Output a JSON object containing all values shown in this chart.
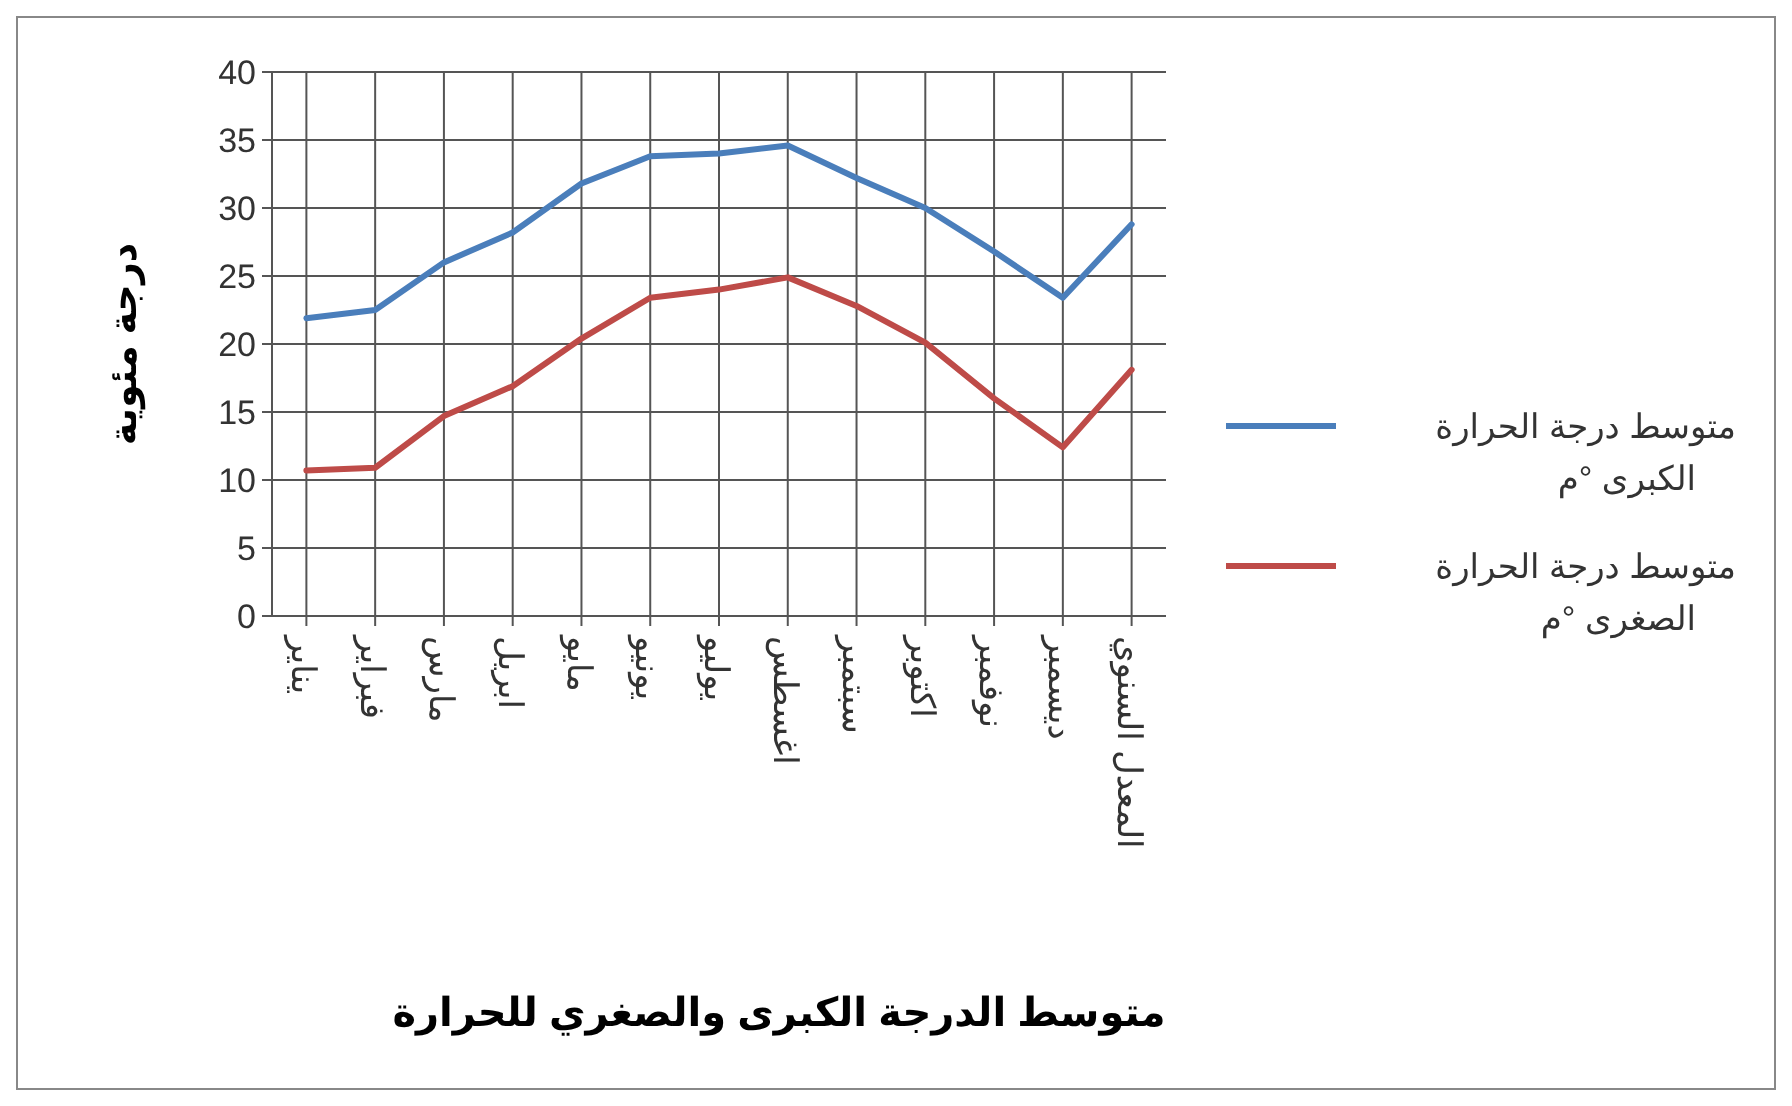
{
  "chart_data": {
    "type": "line",
    "title": "متوسط الدرجة الكبرى والصغري للحرارة",
    "ylabel": "درجة مئوية",
    "categories": [
      "يناير",
      "فبراير",
      "مارس",
      "ابريل",
      "مايو",
      "يونيو",
      "يوليو",
      "اغسطس",
      "سبتمبر",
      "اكتوبر",
      "نوفمبر",
      "ديسمبر",
      "المعدل السنوي"
    ],
    "series": [
      {
        "name": "متوسط درجة الحرارة الكبرى °م",
        "color": "#4a7ebb",
        "values": [
          21.9,
          22.5,
          26,
          28.2,
          31.8,
          33.8,
          34,
          34.6,
          32.2,
          30,
          26.8,
          23.4,
          28.8
        ]
      },
      {
        "name": "متوسط درجة الحرارة الصغرى °م",
        "color": "#be4b48",
        "values": [
          10.7,
          10.9,
          14.7,
          16.9,
          20.4,
          23.4,
          24,
          24.9,
          22.8,
          20.1,
          16,
          12.4,
          18.1
        ]
      }
    ],
    "ylim": [
      0,
      40
    ],
    "yticks": [
      0,
      5,
      10,
      15,
      20,
      25,
      30,
      35,
      40
    ],
    "grid": true,
    "legend": "right",
    "marker": "none",
    "line_style": "solid"
  }
}
